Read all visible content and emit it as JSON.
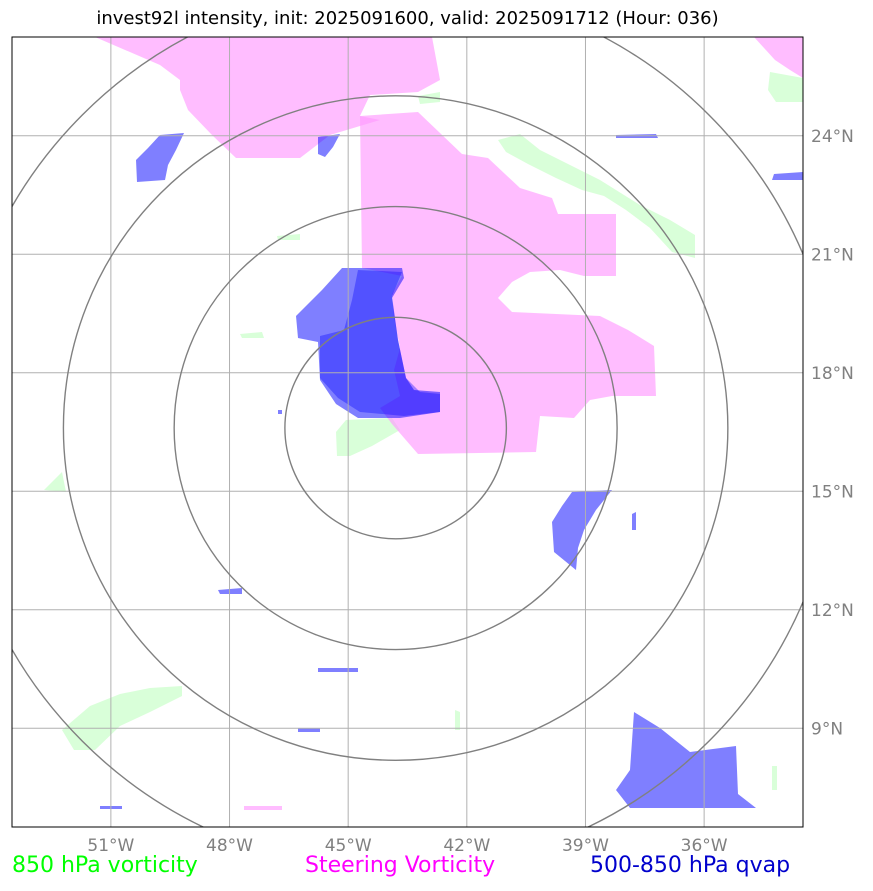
{
  "title": "invest92l intensity, init: 2025091600, valid: 2025091712 (Hour: 036)",
  "map": {
    "projection": "plate-carree",
    "lon_range": [
      -53.5,
      -33.5
    ],
    "lat_range": [
      6.5,
      26.5
    ],
    "grid": true,
    "lon_ticks": [
      {
        "value": -51,
        "label": "51°W"
      },
      {
        "value": -48,
        "label": "48°W"
      },
      {
        "value": -45,
        "label": "45°W"
      },
      {
        "value": -42,
        "label": "42°W"
      },
      {
        "value": -39,
        "label": "39°W"
      },
      {
        "value": -36,
        "label": "36°W"
      }
    ],
    "lat_ticks": [
      {
        "value": 24,
        "label": "24°N"
      },
      {
        "value": 21,
        "label": "21°N"
      },
      {
        "value": 18,
        "label": "18°N"
      },
      {
        "value": 15,
        "label": "15°N"
      },
      {
        "value": 12,
        "label": "12°N"
      },
      {
        "value": 9,
        "label": "9°N"
      }
    ],
    "storm_center": {
      "lon": -43.8,
      "lat": 16.6
    },
    "range_rings_deg": [
      2.8,
      5.6,
      8.4,
      11.2
    ],
    "colors": {
      "grid": "#b0b0b0",
      "rings": "#808080",
      "vorticity_850": "#ccffcc",
      "steering_vorticity": "#ff99ff",
      "qvap": "#0000ff"
    }
  },
  "legend": [
    {
      "label": "850 hPa vorticity",
      "color": "#00ff00"
    },
    {
      "label": "Steering Vorticity",
      "color": "#ff00ff"
    },
    {
      "label": "500-850 hPa qvap",
      "color": "#0000cc"
    }
  ]
}
